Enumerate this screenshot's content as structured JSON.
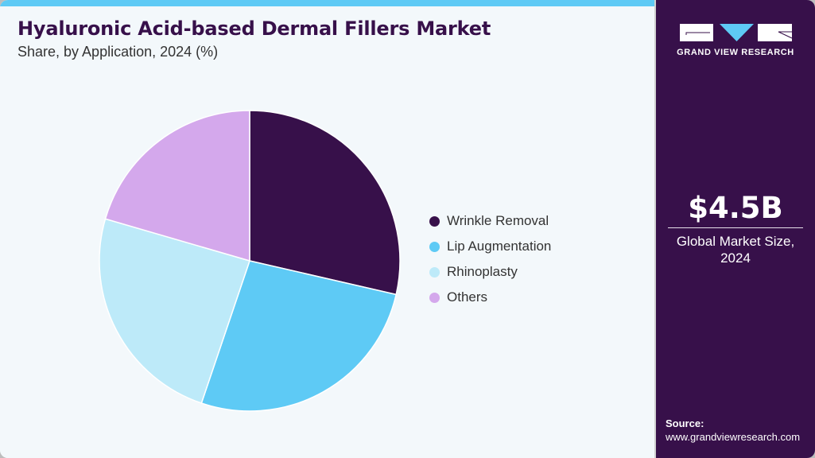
{
  "header": {
    "title": "Hyaluronic Acid-based Dermal Fillers Market",
    "subtitle": "Share, by Application, 2024 (%)"
  },
  "brand": {
    "name": "GRAND VIEW RESEARCH",
    "logo_icon": "gvr-logo-icon"
  },
  "kpi": {
    "value": "$4.5B",
    "label_line1": "Global Market Size,",
    "label_line2": "2024"
  },
  "source": {
    "label": "Source:",
    "url": "www.grandviewresearch.com"
  },
  "colors": {
    "accent_bar": "#5ecaf5",
    "side_panel": "#37104a",
    "background": "#f3f8fb"
  },
  "legend": [
    {
      "label": "Wrinkle Removal",
      "color": "#37104a"
    },
    {
      "label": "Lip Augmentation",
      "color": "#5ecaf5"
    },
    {
      "label": "Rhinoplasty",
      "color": "#bdeaf9"
    },
    {
      "label": "Others",
      "color": "#d4a8ec"
    }
  ],
  "chart_data": {
    "type": "pie",
    "title": "Hyaluronic Acid-based Dermal Fillers Market",
    "subtitle": "Share, by Application, 2024 (%)",
    "categories": [
      "Wrinkle Removal",
      "Lip Augmentation",
      "Rhinoplasty",
      "Others"
    ],
    "values": [
      28.6,
      26.6,
      24.3,
      20.5
    ],
    "colors": [
      "#37104a",
      "#5ecaf5",
      "#bdeaf9",
      "#d4a8ec"
    ],
    "start_angle": "12 o'clock, clockwise",
    "legend_position": "right",
    "data_labels": false
  }
}
